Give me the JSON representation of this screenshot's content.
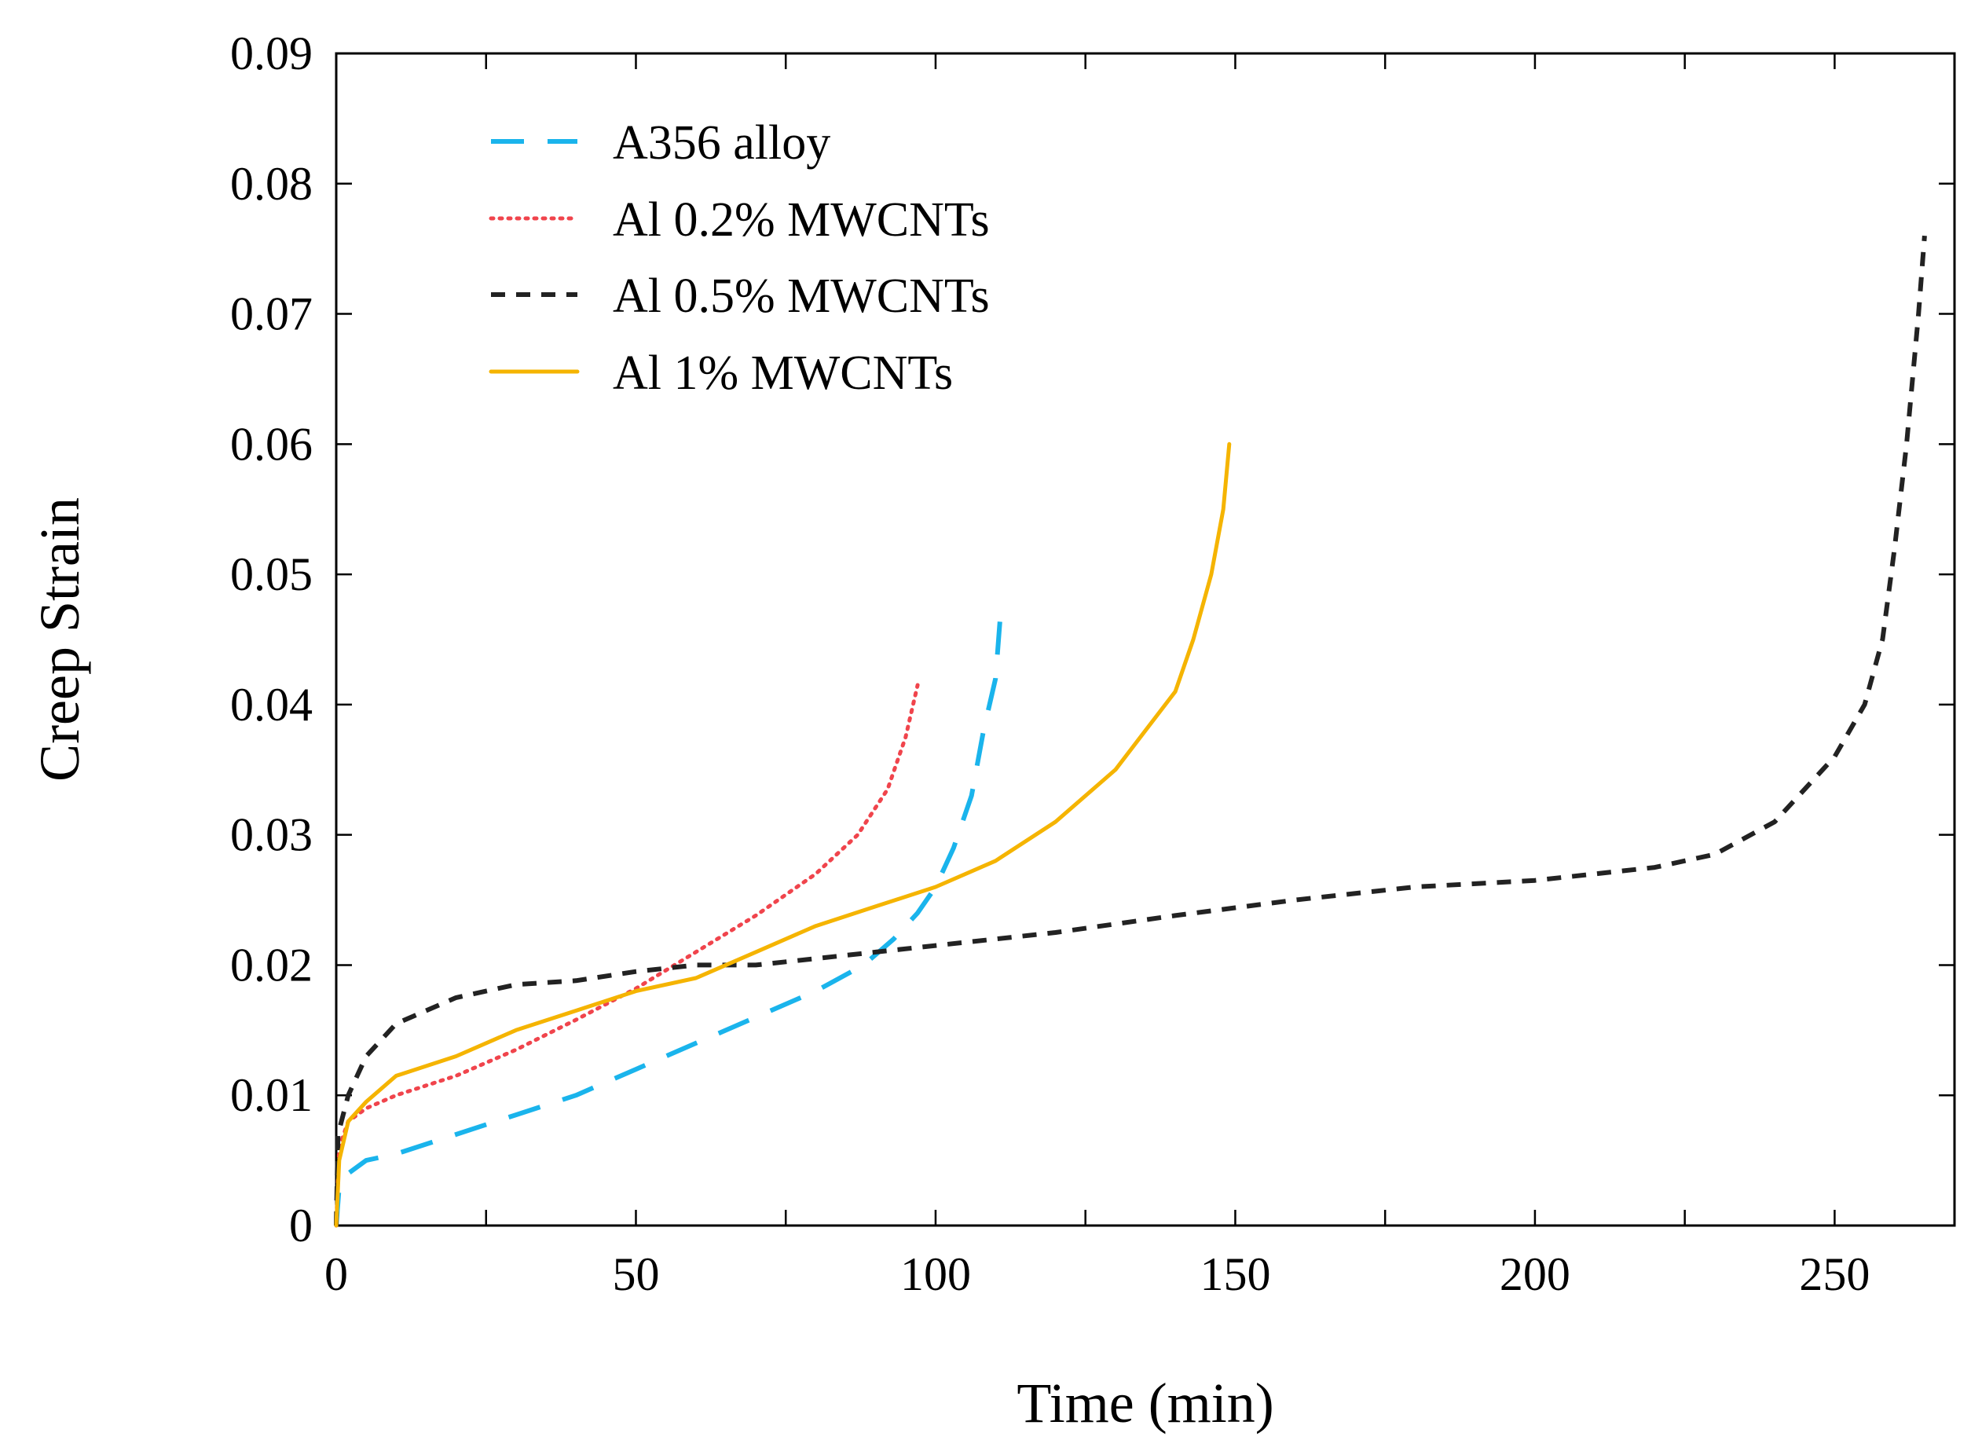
{
  "chart_data": {
    "type": "line",
    "title": "",
    "xlabel": "Time (min)",
    "ylabel": "Creep Strain",
    "xlim": [
      0,
      270
    ],
    "ylim": [
      0,
      0.09
    ],
    "xticks": [
      0,
      50,
      100,
      150,
      200,
      250
    ],
    "xtick_labels": [
      "0",
      "50",
      "100",
      "150",
      "200",
      "250"
    ],
    "yticks": [
      0,
      0.01,
      0.02,
      0.03,
      0.04,
      0.05,
      0.06,
      0.07,
      0.08,
      0.09
    ],
    "ytick_labels": [
      "0",
      "0.01",
      "0.02",
      "0.03",
      "0.04",
      "0.05",
      "0.06",
      "0.07",
      "0.08",
      "0.09"
    ],
    "grid": false,
    "legend_position": "top-left",
    "series": [
      {
        "name": "A356 alloy",
        "color": "#1ab4ec",
        "style": "long-dash",
        "x": [
          0,
          0.5,
          2,
          5,
          10,
          20,
          30,
          40,
          50,
          60,
          70,
          80,
          88,
          93,
          97,
          100,
          103,
          106,
          108,
          110,
          110.5,
          111
        ],
        "y": [
          0,
          0.003,
          0.004,
          0.005,
          0.0055,
          0.007,
          0.0085,
          0.01,
          0.012,
          0.014,
          0.016,
          0.018,
          0.02,
          0.022,
          0.024,
          0.026,
          0.029,
          0.033,
          0.038,
          0.042,
          0.045,
          0.048
        ]
      },
      {
        "name": "Al 0.2% MWCNTs",
        "color": "#f0444c",
        "style": "dotted",
        "x": [
          0,
          0.5,
          2,
          5,
          10,
          20,
          30,
          40,
          50,
          60,
          70,
          80,
          87,
          92,
          95,
          97
        ],
        "y": [
          0,
          0.006,
          0.008,
          0.009,
          0.01,
          0.0115,
          0.0135,
          0.0158,
          0.0182,
          0.021,
          0.0238,
          0.027,
          0.03,
          0.0335,
          0.0375,
          0.0415
        ]
      },
      {
        "name": "Al 0.5% MWCNTs",
        "color": "#222222",
        "style": "dashed",
        "x": [
          0,
          0.3,
          2,
          5,
          10,
          20,
          30,
          40,
          50,
          60,
          70,
          80,
          90,
          100,
          120,
          140,
          160,
          180,
          200,
          220,
          230,
          240,
          250,
          255,
          258,
          260,
          262,
          264,
          265
        ],
        "y": [
          0,
          0.007,
          0.01,
          0.013,
          0.0155,
          0.0175,
          0.0185,
          0.0188,
          0.0195,
          0.02,
          0.02,
          0.0205,
          0.021,
          0.0215,
          0.0225,
          0.0238,
          0.025,
          0.026,
          0.0265,
          0.0275,
          0.0285,
          0.031,
          0.036,
          0.04,
          0.045,
          0.052,
          0.06,
          0.07,
          0.076
        ]
      },
      {
        "name": "Al 1% MWCNTs",
        "color": "#f5b400",
        "style": "solid",
        "x": [
          0,
          0.5,
          2,
          5,
          10,
          20,
          30,
          40,
          50,
          60,
          70,
          80,
          90,
          100,
          110,
          120,
          130,
          135,
          140,
          143,
          146,
          148,
          149
        ],
        "y": [
          0,
          0.005,
          0.008,
          0.0095,
          0.0115,
          0.013,
          0.015,
          0.0165,
          0.018,
          0.019,
          0.021,
          0.023,
          0.0245,
          0.026,
          0.028,
          0.031,
          0.035,
          0.038,
          0.041,
          0.045,
          0.05,
          0.055,
          0.06
        ]
      }
    ]
  }
}
